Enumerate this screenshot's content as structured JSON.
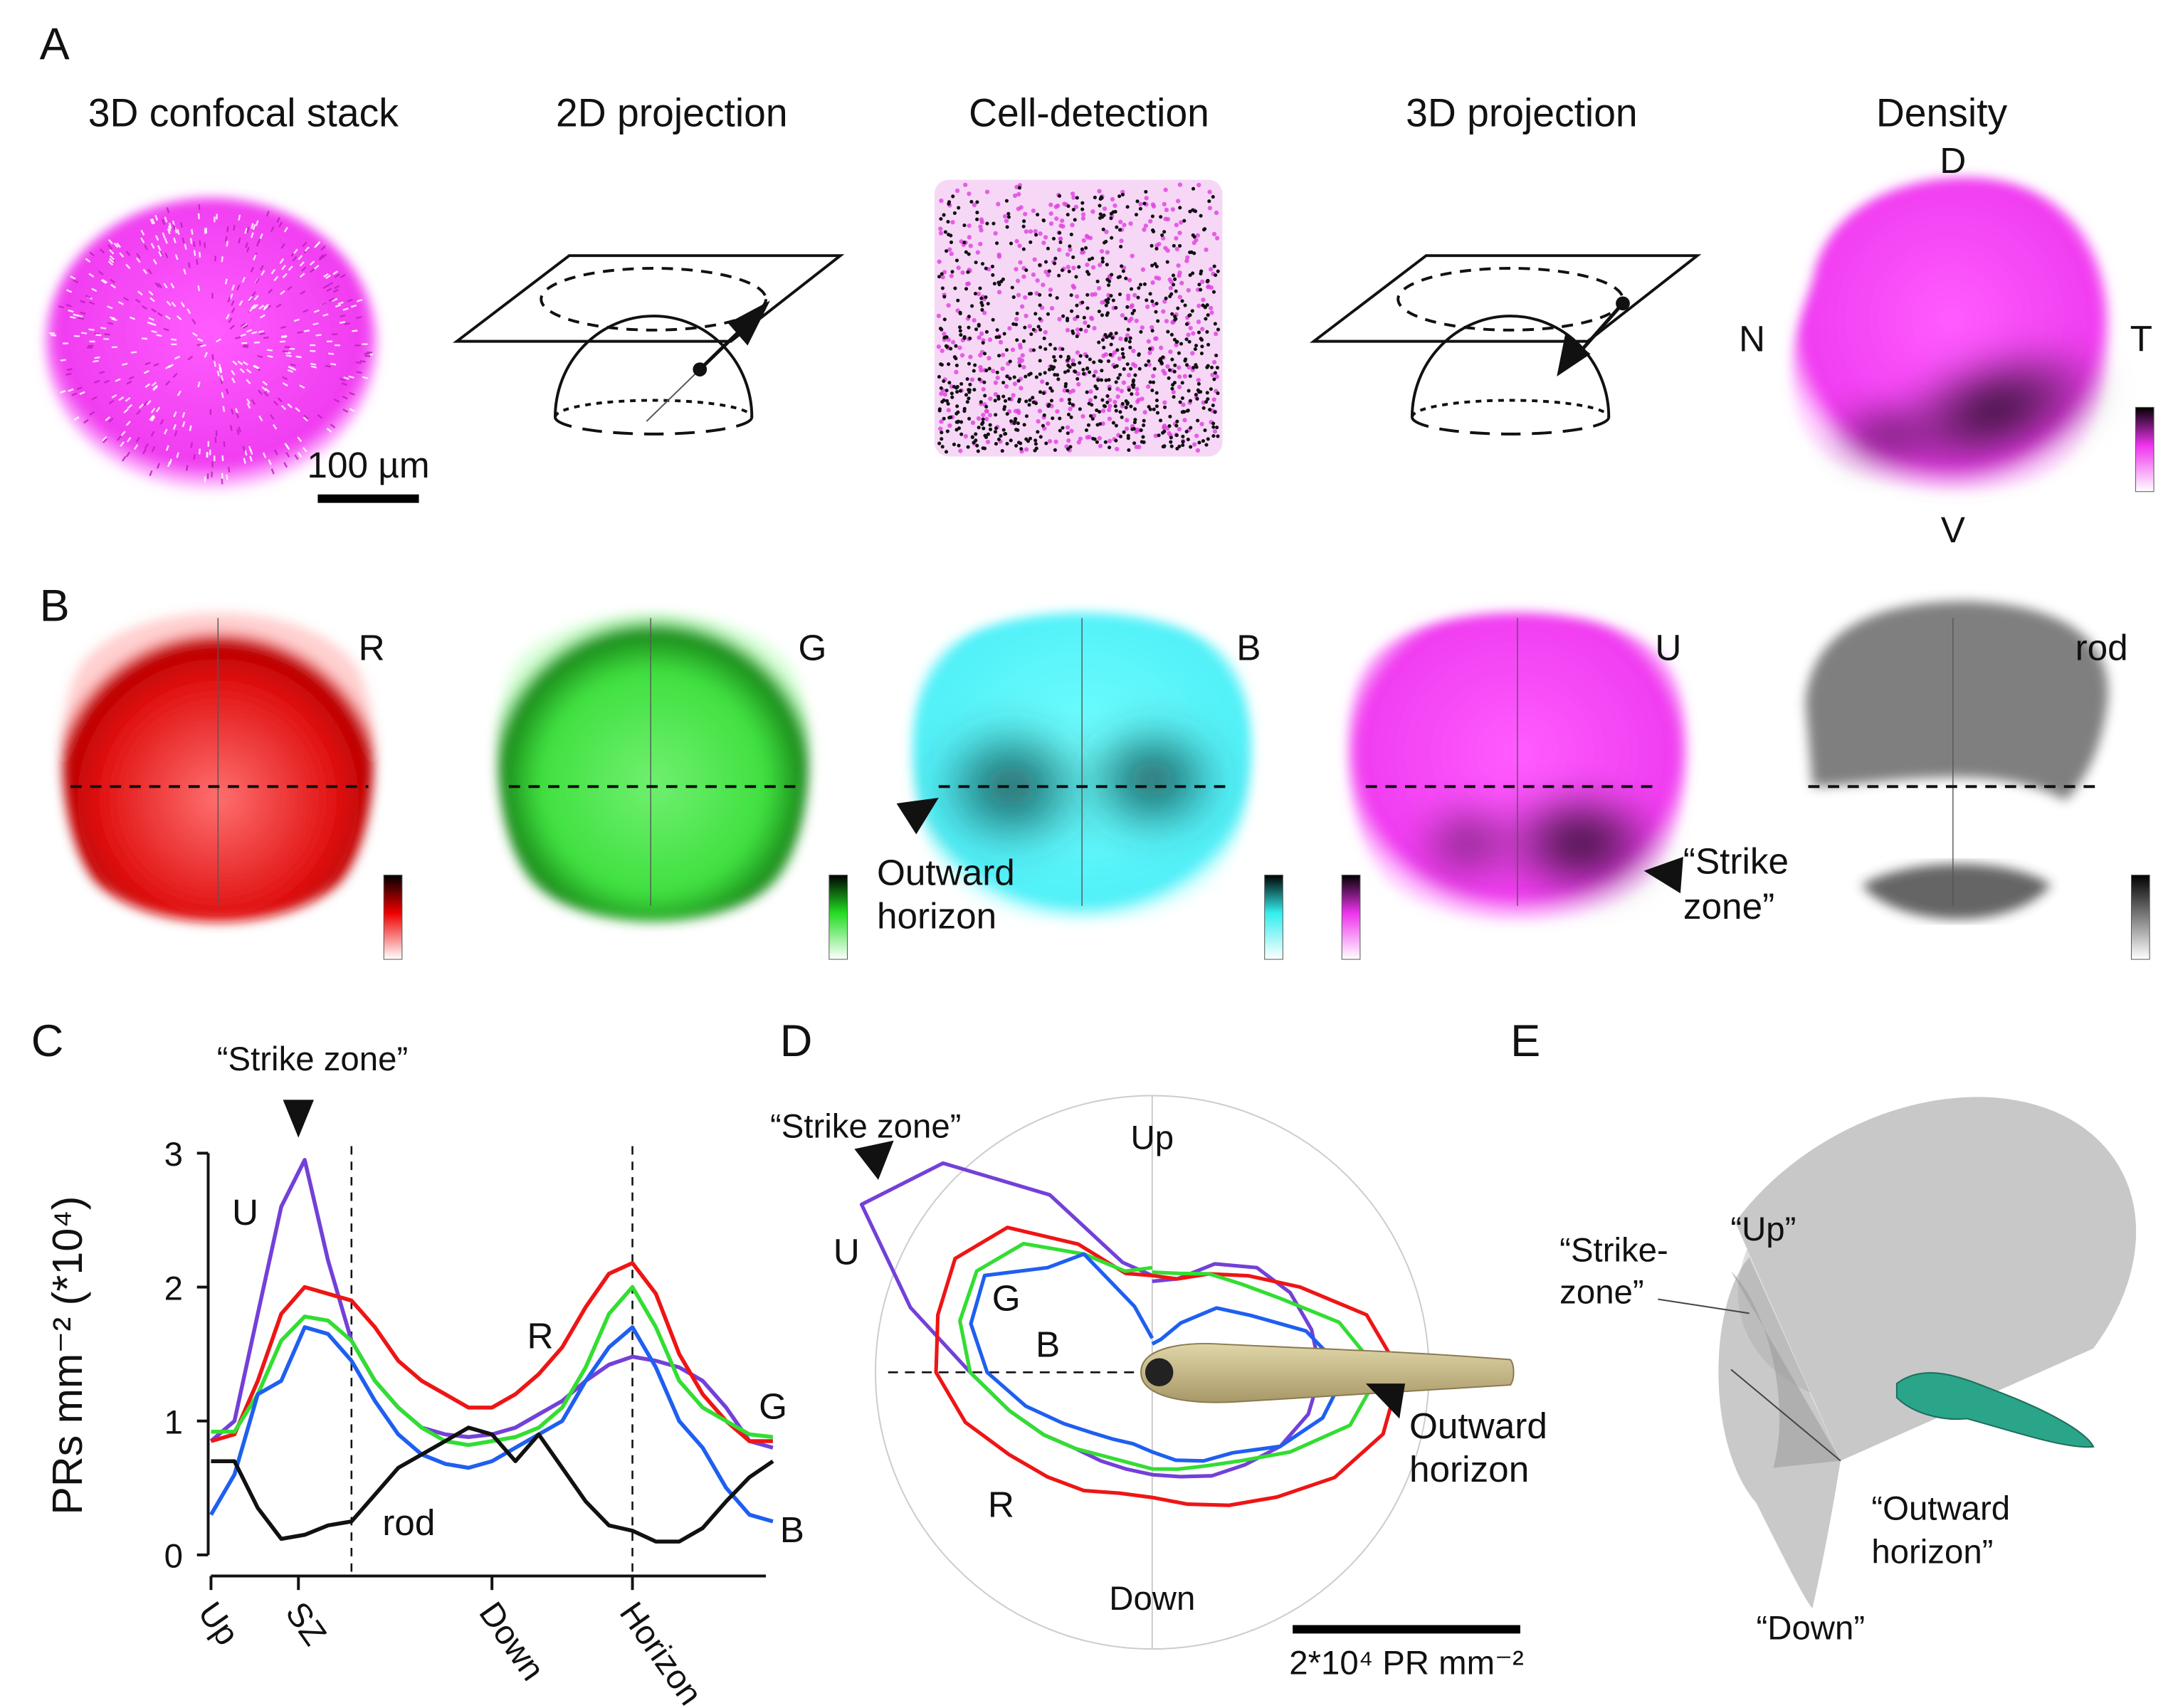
{
  "panel_labels": [
    "A",
    "B",
    "C",
    "D",
    "E"
  ],
  "panel_a": {
    "titles": [
      "3D confocal stack",
      "2D projection",
      "Cell-detection",
      "3D projection",
      "Density"
    ],
    "scale_bar": "100 µm",
    "axes": {
      "dorsal": "D",
      "nasal": "N",
      "temporal": "T",
      "ventral": "V"
    }
  },
  "panel_b": {
    "labels": [
      "R",
      "G",
      "B",
      "U",
      "rod"
    ],
    "outward_horizon": [
      "Outward",
      "horizon"
    ],
    "strike_zone": [
      "“Strike",
      "zone”"
    ]
  },
  "chart_data": [
    {
      "type": "line",
      "ylabel": "PRs mm⁻² (*10⁴)",
      "annotation": "“Strike zone”",
      "x": [
        0,
        15,
        30,
        45,
        60,
        75,
        90,
        105,
        120,
        135,
        150,
        165,
        180,
        195,
        210,
        225,
        240,
        255,
        270,
        285,
        300,
        315,
        330,
        345,
        360
      ],
      "xlim": [
        0,
        360
      ],
      "xticks": [
        {
          "value": 0,
          "label": "Up"
        },
        {
          "value": 56,
          "label": "SZ"
        },
        {
          "value": 180,
          "label": "Down"
        },
        {
          "value": 270,
          "label": "Horizon"
        }
      ],
      "vlines": [
        90,
        270
      ],
      "ylim": [
        0,
        3
      ],
      "yticks": [
        0,
        1,
        2,
        3
      ],
      "series": [
        {
          "name": "U",
          "color": "#7340d8",
          "values": [
            0.85,
            1.0,
            1.8,
            2.6,
            2.95,
            2.2,
            1.6,
            1.3,
            1.1,
            0.95,
            0.9,
            0.88,
            0.9,
            0.95,
            1.05,
            1.15,
            1.3,
            1.42,
            1.48,
            1.45,
            1.4,
            1.3,
            1.1,
            0.85,
            0.8
          ]
        },
        {
          "name": "R",
          "color": "#ee1515",
          "values": [
            0.85,
            0.9,
            1.3,
            1.8,
            2.0,
            1.95,
            1.9,
            1.7,
            1.45,
            1.3,
            1.2,
            1.1,
            1.1,
            1.2,
            1.35,
            1.55,
            1.85,
            2.1,
            2.18,
            1.95,
            1.5,
            1.2,
            1.0,
            0.85,
            0.85
          ]
        },
        {
          "name": "G",
          "color": "#33dd33",
          "values": [
            0.92,
            0.92,
            1.2,
            1.6,
            1.78,
            1.75,
            1.6,
            1.3,
            1.1,
            0.95,
            0.85,
            0.82,
            0.85,
            0.88,
            0.95,
            1.1,
            1.4,
            1.8,
            2.0,
            1.7,
            1.3,
            1.1,
            1.0,
            0.9,
            0.88
          ]
        },
        {
          "name": "B",
          "color": "#1f5ff0",
          "values": [
            0.3,
            0.6,
            1.2,
            1.3,
            1.7,
            1.65,
            1.45,
            1.15,
            0.9,
            0.75,
            0.68,
            0.65,
            0.7,
            0.8,
            0.9,
            1.0,
            1.3,
            1.55,
            1.7,
            1.4,
            1.0,
            0.8,
            0.5,
            0.3,
            0.25
          ]
        },
        {
          "name": "rod",
          "color": "#111111",
          "values": [
            0.7,
            0.7,
            0.35,
            0.12,
            0.15,
            0.22,
            0.25,
            0.45,
            0.65,
            0.75,
            0.85,
            0.95,
            0.9,
            0.7,
            0.9,
            0.65,
            0.4,
            0.22,
            0.18,
            0.1,
            0.1,
            0.2,
            0.4,
            0.58,
            0.7
          ]
        }
      ]
    },
    {
      "type": "polar",
      "direction_labels": {
        "up": "Up",
        "down": "Down"
      },
      "annotations": {
        "strike_zone": "“Strike zone”",
        "outward_horizon": [
          "Outward",
          "horizon"
        ]
      },
      "theta": [
        0,
        15,
        30,
        45,
        60,
        75,
        90,
        105,
        120,
        135,
        150,
        165,
        180,
        195,
        210,
        225,
        240,
        255,
        270,
        285,
        300,
        315,
        330,
        345,
        360
      ],
      "scale_bar": {
        "value": 2,
        "label": "2*10⁴ PR mm⁻²"
      },
      "series": [
        {
          "name": "U",
          "color": "#7340d8",
          "values": [
            0.85,
            1.0,
            1.8,
            2.6,
            2.95,
            2.2,
            1.6,
            1.3,
            1.1,
            0.95,
            0.9,
            0.88,
            0.9,
            0.95,
            1.05,
            1.15,
            1.3,
            1.42,
            1.48,
            1.45,
            1.4,
            1.3,
            1.1,
            0.85,
            0.8
          ]
        },
        {
          "name": "R",
          "color": "#ee1515",
          "values": [
            0.85,
            0.9,
            1.3,
            1.8,
            2.0,
            1.95,
            1.9,
            1.7,
            1.45,
            1.3,
            1.2,
            1.1,
            1.1,
            1.2,
            1.35,
            1.55,
            1.85,
            2.1,
            2.18,
            1.95,
            1.5,
            1.2,
            1.0,
            0.85,
            0.85
          ]
        },
        {
          "name": "G",
          "color": "#33dd33",
          "values": [
            0.92,
            0.92,
            1.2,
            1.6,
            1.78,
            1.75,
            1.6,
            1.3,
            1.1,
            0.95,
            0.85,
            0.82,
            0.85,
            0.88,
            0.95,
            1.1,
            1.4,
            1.8,
            2.0,
            1.7,
            1.3,
            1.1,
            1.0,
            0.9,
            0.88
          ]
        },
        {
          "name": "B",
          "color": "#1f5ff0",
          "values": [
            0.3,
            0.6,
            1.2,
            1.3,
            1.7,
            1.65,
            1.45,
            1.15,
            0.9,
            0.75,
            0.68,
            0.65,
            0.7,
            0.8,
            0.9,
            1.0,
            1.3,
            1.55,
            1.7,
            1.4,
            1.0,
            0.8,
            0.5,
            0.3,
            0.25
          ]
        }
      ]
    }
  ],
  "panel_e": {
    "up": "“Up”",
    "strike_zone": [
      "“Strike-",
      "zone”"
    ],
    "outward_horizon": [
      "“Outward",
      "horizon”"
    ],
    "down": "“Down”"
  }
}
